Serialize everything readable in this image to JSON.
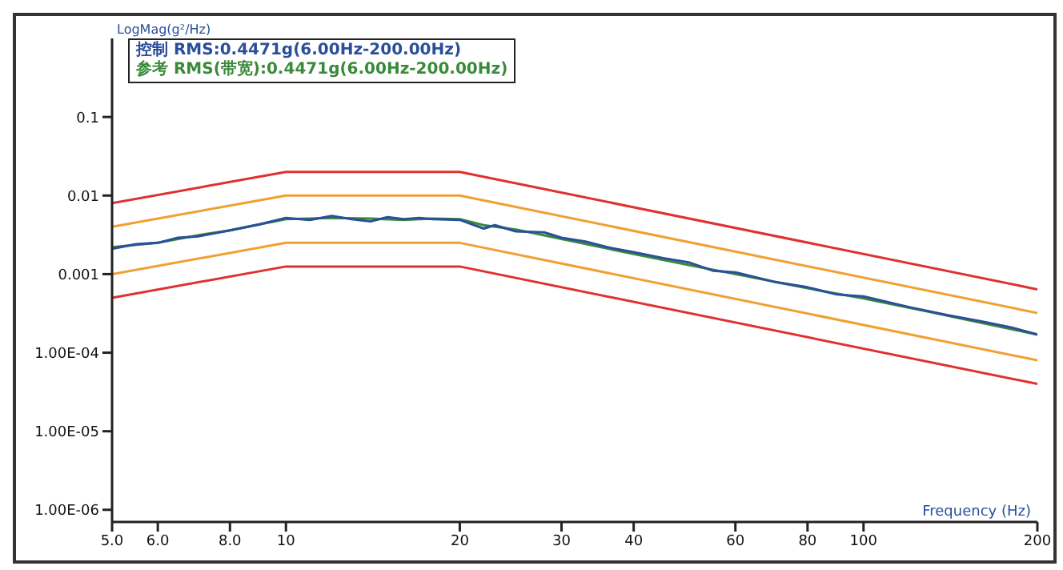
{
  "chart_data": {
    "type": "line",
    "xlabel": "Frequency (Hz)",
    "ylabel": "LogMag(g²/Hz)",
    "log": "xy",
    "grid": false,
    "legend": "top left",
    "marker": "none",
    "xlim": [
      5,
      200
    ],
    "ylim": [
      7e-07,
      1
    ],
    "xticks": [
      {
        "value": 5,
        "label": "5.0"
      },
      {
        "value": 6,
        "label": "6.0"
      },
      {
        "value": 8,
        "label": "8.0"
      },
      10,
      20,
      30,
      40,
      60,
      80,
      100,
      200
    ],
    "yticks": [
      {
        "value": 1e-06,
        "label": "1.00E-06"
      },
      {
        "value": 1e-05,
        "label": "1.00E-05"
      },
      {
        "value": 0.0001,
        "label": "1.00E-04"
      },
      0.001,
      0.01,
      0.1
    ],
    "series": [
      {
        "color": "#e03030",
        "x": [
          5,
          10,
          20,
          200
        ],
        "values": [
          0.008,
          0.02,
          0.02,
          0.00064
        ]
      },
      {
        "color": "#f0a030",
        "x": [
          5,
          10,
          20,
          200
        ],
        "values": [
          0.004,
          0.01,
          0.01,
          0.00032
        ]
      },
      {
        "color": "#f0a030",
        "x": [
          5,
          10,
          20,
          200
        ],
        "values": [
          0.001,
          0.0025,
          0.0025,
          8e-05
        ]
      },
      {
        "color": "#e03030",
        "x": [
          5,
          10,
          20,
          200
        ],
        "values": [
          0.0005,
          0.00125,
          0.00125,
          4e-05
        ]
      },
      {
        "name": "参考 RMS(带宽):0.4471g(6.00Hz-200.00Hz)",
        "color": "#3a8a3a",
        "x": [
          5,
          6,
          7,
          8,
          9,
          10,
          12,
          14,
          16,
          18,
          20,
          22,
          25,
          30,
          40,
          50,
          60,
          80,
          100,
          130,
          160,
          200
        ],
        "values": [
          0.0022,
          0.0025,
          0.0031,
          0.0036,
          0.0043,
          0.005,
          0.0052,
          0.0051,
          0.0049,
          0.0051,
          0.005,
          0.0042,
          0.0037,
          0.0028,
          0.0018,
          0.0013,
          0.001,
          0.00066,
          0.00049,
          0.00033,
          0.00024,
          0.00017
        ]
      },
      {
        "name": "控制 RMS:0.4471g(6.00Hz-200.00Hz)",
        "color": "#2a4f9a",
        "x": [
          5,
          5.5,
          6,
          6.5,
          7,
          8,
          9,
          10,
          11,
          12,
          13,
          14,
          15,
          16,
          17,
          18,
          20,
          22,
          23,
          25,
          28,
          30,
          33,
          36,
          40,
          45,
          50,
          55,
          60,
          70,
          80,
          90,
          100,
          120,
          140,
          160,
          180,
          200
        ],
        "values": [
          0.0021,
          0.0024,
          0.0025,
          0.0029,
          0.003,
          0.0036,
          0.0043,
          0.0052,
          0.0049,
          0.0055,
          0.005,
          0.0047,
          0.0053,
          0.005,
          0.0052,
          0.005,
          0.0049,
          0.0038,
          0.0042,
          0.0035,
          0.0034,
          0.0029,
          0.0026,
          0.0022,
          0.0019,
          0.0016,
          0.0014,
          0.0011,
          0.00105,
          0.0008,
          0.00068,
          0.00055,
          0.00052,
          0.00038,
          0.0003,
          0.00025,
          0.00021,
          0.00017
        ]
      }
    ]
  }
}
